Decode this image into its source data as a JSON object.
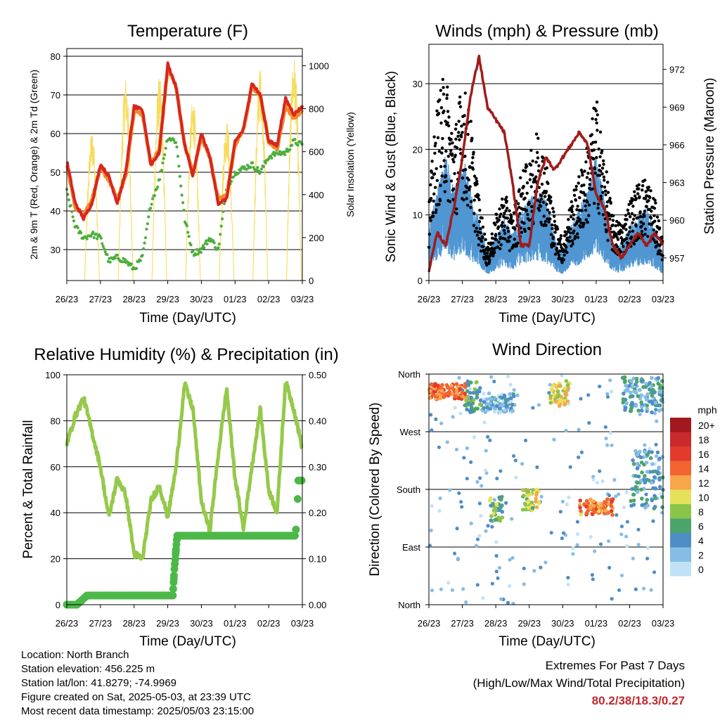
{
  "x_tick_labels": [
    "26/23",
    "27/23",
    "28/23",
    "29/23",
    "30/23",
    "01/23",
    "02/23",
    "03/23"
  ],
  "x_axis_label": "Time (Day/UTC)",
  "colors": {
    "temp_red": "#d7261e",
    "temp_orange": "#f28a2e",
    "dewpoint_green": "#4cae3c",
    "solar_yellow": "#f7dc5b",
    "wind_blue": "#4f96d2",
    "gust_black": "#000000",
    "pressure_maroon": "#a01c1c",
    "rh_green": "#95c94a",
    "precip_green": "#4cb848",
    "extremes_red": "#c0282d"
  },
  "info": {
    "location": "Location: North Branch",
    "elevation": "Station elevation: 456.225 m",
    "latlon": "Station lat/lon: 41.8279; -74.9969",
    "created": "Figure created on Sat, 2025-05-03, at 23:39 UTC",
    "latest": "Most recent data timestamp: 2025/05/03 23:15:00"
  },
  "extremes": {
    "line1": "Extremes For Past 7 Days",
    "line2": "(High/Low/Max Wind/Total Precipitation)",
    "values": "80.2/38/18.3/0.27"
  },
  "chart_data": [
    {
      "type": "line",
      "title": "Temperature (F)",
      "xlabel": "Time (Day/UTC)",
      "ylabel": "2m & 9m T (Red, Orange) & 2m Td (Green)",
      "y2label": "Solar Insolation (Yellow)",
      "ylim": [
        22,
        82
      ],
      "yticks": [
        30,
        40,
        50,
        60,
        70,
        80
      ],
      "y2lim": [
        0,
        1080
      ],
      "y2ticks": [
        0,
        200,
        400,
        600,
        800,
        1000
      ],
      "x": [
        0,
        0.25,
        0.5,
        0.75,
        1,
        1.25,
        1.5,
        1.75,
        2,
        2.25,
        2.5,
        2.75,
        3,
        3.25,
        3.5,
        3.75,
        4,
        4.25,
        4.5,
        4.75,
        5,
        5.25,
        5.5,
        5.75,
        6,
        6.25,
        6.5,
        6.75,
        7
      ],
      "series": [
        {
          "name": "2m T",
          "values": [
            53,
            42,
            38,
            42,
            52,
            49,
            42,
            50,
            67,
            66,
            52,
            55,
            78,
            72,
            57,
            49,
            60,
            54,
            42,
            43,
            58,
            61,
            73,
            70,
            58,
            57,
            69,
            65,
            67
          ]
        },
        {
          "name": "9m T",
          "values": [
            52,
            41,
            39,
            43,
            51,
            48,
            43,
            49,
            66,
            65,
            52,
            56,
            77,
            72,
            57,
            50,
            59,
            54,
            43,
            44,
            57,
            61,
            72,
            70,
            58,
            56,
            67,
            64,
            66
          ]
        },
        {
          "name": "2m Td",
          "values": [
            45,
            36,
            33,
            34,
            33,
            27,
            28,
            27,
            25,
            28,
            42,
            48,
            59,
            58,
            38,
            29,
            30,
            33,
            30,
            46,
            50,
            51,
            52,
            50,
            54,
            55,
            55,
            58,
            57
          ]
        },
        {
          "name": "Solar Insolation",
          "axis": "right",
          "peaks": [
            {
              "day": 0.75,
              "w": 700
            },
            {
              "day": 1.75,
              "w": 950
            },
            {
              "day": 2.75,
              "w": 950
            },
            {
              "day": 3.75,
              "w": 850
            },
            {
              "day": 4.75,
              "w": 750
            },
            {
              "day": 5.75,
              "w": 1000
            },
            {
              "day": 6.75,
              "w": 1050
            }
          ]
        }
      ]
    },
    {
      "type": "line",
      "title": "Winds (mph) & Pressure (mb)",
      "xlabel": "Time (Day/UTC)",
      "ylabel": "Sonic Wind & Gust (Blue, Black)",
      "y2label": "Station Pressure (Maroon)",
      "ylim": [
        0,
        36
      ],
      "yticks": [
        0,
        10,
        20,
        30
      ],
      "y2lim": [
        955.2,
        974.0
      ],
      "y2ticks": [
        957,
        960,
        963,
        966,
        969,
        972
      ],
      "x": [
        0,
        0.25,
        0.5,
        0.75,
        1,
        1.25,
        1.5,
        1.75,
        2,
        2.25,
        2.5,
        2.75,
        3,
        3.25,
        3.5,
        3.75,
        4,
        4.25,
        4.5,
        4.75,
        5,
        5.25,
        5.5,
        5.75,
        6,
        6.25,
        6.5,
        6.75,
        7
      ],
      "series": [
        {
          "name": "Sonic Wind",
          "values": [
            6,
            10,
            14,
            10,
            14,
            10,
            7,
            3,
            5,
            7,
            5,
            8,
            9,
            10,
            9,
            5,
            3,
            6,
            8,
            10,
            14,
            9,
            4,
            4,
            6,
            7,
            8,
            6,
            3
          ]
        },
        {
          "name": "Gust",
          "values": [
            10,
            22,
            26,
            18,
            25,
            20,
            10,
            4,
            8,
            11,
            8,
            13,
            15,
            19,
            15,
            8,
            5,
            10,
            13,
            17,
            23,
            15,
            8,
            7,
            10,
            12,
            13,
            10,
            5
          ]
        },
        {
          "name": "Station Pressure",
          "axis": "right",
          "values": [
            956,
            959,
            958,
            961,
            965,
            970,
            973,
            969,
            968,
            967,
            963,
            958,
            958,
            963,
            965,
            964,
            965,
            966,
            967,
            966,
            962,
            961,
            958,
            957,
            958,
            959,
            958,
            959,
            958
          ]
        }
      ]
    },
    {
      "type": "line",
      "title": "Relative Humidity (%) & Precipitation (in)",
      "xlabel": "Time (Day/UTC)",
      "ylabel": "Percent & Total Rainfall",
      "ylim": [
        0,
        100
      ],
      "yticks": [
        0,
        20,
        40,
        60,
        80,
        100
      ],
      "y2lim": [
        0,
        0.5
      ],
      "y2ticks": [
        "0.00",
        "0.10",
        "0.20",
        "0.30",
        "0.40",
        "0.50"
      ],
      "x": [
        0,
        0.25,
        0.5,
        0.75,
        1,
        1.25,
        1.5,
        1.75,
        2,
        2.25,
        2.5,
        2.75,
        3,
        3.25,
        3.5,
        3.75,
        4,
        4.25,
        4.5,
        4.75,
        5,
        5.25,
        5.5,
        5.75,
        6,
        6.25,
        6.5,
        6.75,
        7
      ],
      "series": [
        {
          "name": "Relative Humidity",
          "values": [
            70,
            82,
            90,
            75,
            60,
            38,
            55,
            48,
            22,
            20,
            45,
            52,
            38,
            60,
            96,
            85,
            45,
            32,
            65,
            94,
            55,
            33,
            60,
            85,
            50,
            40,
            97,
            85,
            68
          ]
        },
        {
          "name": "Precipitation",
          "axis": "right",
          "points": [
            [
              0,
              0
            ],
            [
              0.3,
              0
            ],
            [
              0.45,
              0.01
            ],
            [
              0.6,
              0.02
            ],
            [
              1,
              0.02
            ],
            [
              2,
              0.02
            ],
            [
              3.15,
              0.02
            ],
            [
              3.2,
              0.08
            ],
            [
              3.28,
              0.15
            ],
            [
              4,
              0.15
            ],
            [
              5,
              0.15
            ],
            [
              6,
              0.15
            ],
            [
              6.8,
              0.15
            ],
            [
              6.86,
              0.23
            ],
            [
              6.88,
              0.27
            ],
            [
              7,
              0.27
            ]
          ]
        }
      ]
    },
    {
      "type": "scatter",
      "title": "Wind Direction",
      "xlabel": "Time (Day/UTC)",
      "ylabel": "Direction (Colored By Speed)",
      "ytick_labels": [
        "North",
        "East",
        "South",
        "West",
        "North"
      ],
      "ylim": [
        0,
        360
      ],
      "legend_title": "mph",
      "legend_labels": [
        "20+",
        "18",
        "16",
        "14",
        "12",
        "10",
        "8",
        "6",
        "4",
        "2",
        "0"
      ],
      "legend_colors": [
        "#a3171e",
        "#c82a2d",
        "#e23b2b",
        "#f26430",
        "#f7a64a",
        "#e6e15a",
        "#8bc44a",
        "#4ba56a",
        "#4f8dc7",
        "#85bde5",
        "#bfe2f7"
      ],
      "clusters": [
        {
          "t0": 0.0,
          "t1": 1.1,
          "dir0": 320,
          "dir1": 345,
          "speed": 14
        },
        {
          "t0": 1.1,
          "t1": 1.6,
          "dir0": 300,
          "dir1": 350,
          "speed": 6
        },
        {
          "t0": 1.6,
          "t1": 2.6,
          "dir0": 300,
          "dir1": 330,
          "speed": 3
        },
        {
          "t0": 1.8,
          "t1": 2.2,
          "dir0": 130,
          "dir1": 170,
          "speed": 7
        },
        {
          "t0": 2.8,
          "t1": 3.3,
          "dir0": 145,
          "dir1": 180,
          "speed": 9
        },
        {
          "t0": 3.6,
          "t1": 4.2,
          "dir0": 310,
          "dir1": 350,
          "speed": 10
        },
        {
          "t0": 4.5,
          "t1": 5.5,
          "dir0": 140,
          "dir1": 165,
          "speed": 13
        },
        {
          "t0": 5.8,
          "t1": 7.0,
          "dir0": 300,
          "dir1": 355,
          "speed": 4
        },
        {
          "t0": 6.0,
          "t1": 7.0,
          "dir0": 150,
          "dir1": 240,
          "speed": 4
        }
      ]
    }
  ]
}
